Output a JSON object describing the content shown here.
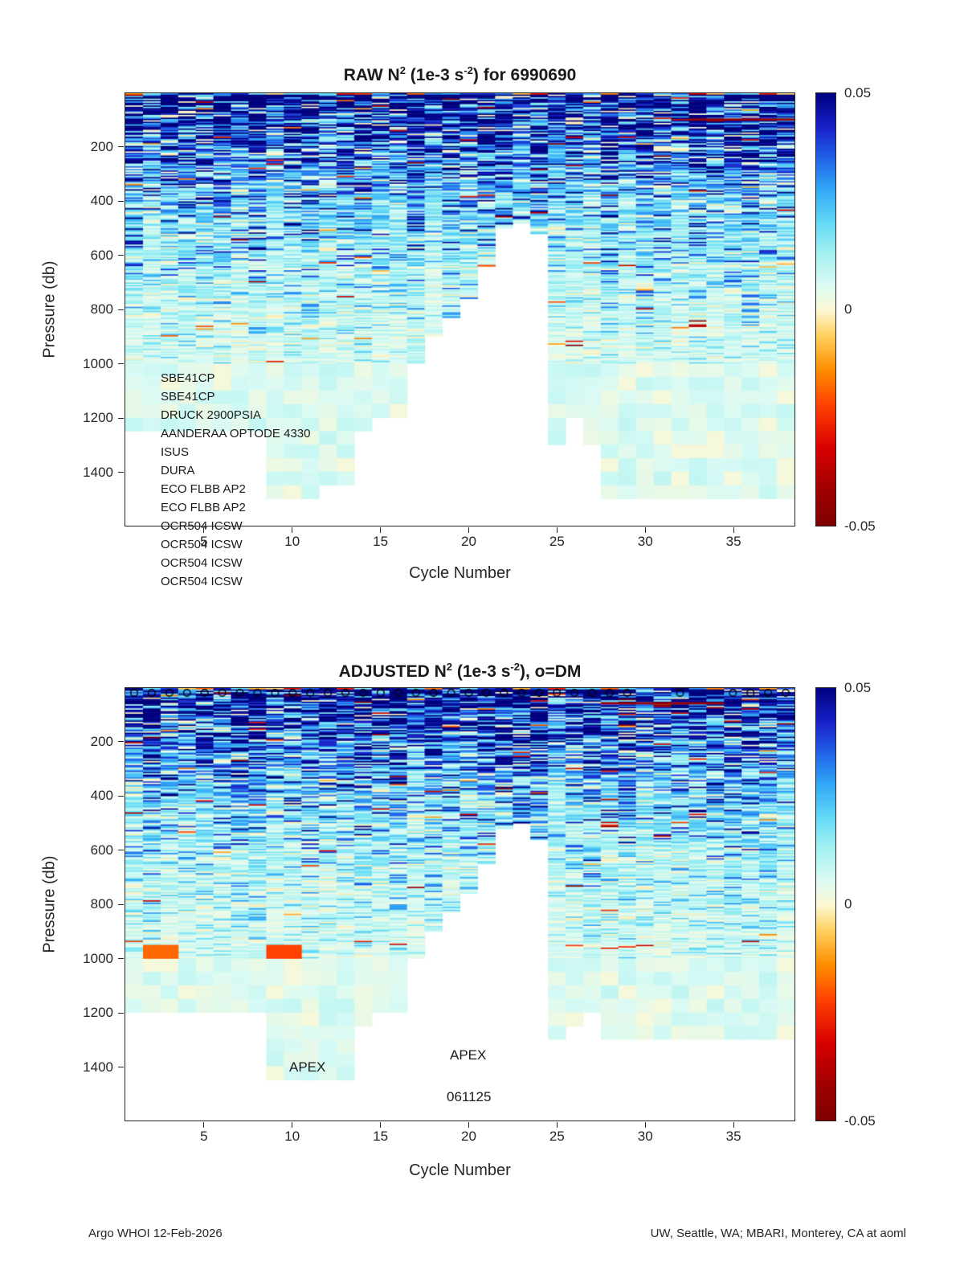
{
  "footer": {
    "left": "Argo WHOI 12-Feb-2026",
    "right": "UW, Seattle, WA; MBARI, Monterey, CA at aoml"
  },
  "colors": {
    "background": "#ffffff",
    "axis": "#262626",
    "colormap_stops": [
      {
        "t": 0.0,
        "c": "#7f0000"
      },
      {
        "t": 0.08,
        "c": "#9e0000"
      },
      {
        "t": 0.18,
        "c": "#d90000"
      },
      {
        "t": 0.28,
        "c": "#ff4200"
      },
      {
        "t": 0.36,
        "c": "#ff8e00"
      },
      {
        "t": 0.44,
        "c": "#ffd060"
      },
      {
        "t": 0.5,
        "c": "#fbf8d5"
      },
      {
        "t": 0.56,
        "c": "#d9faf4"
      },
      {
        "t": 0.63,
        "c": "#a2f1f1"
      },
      {
        "t": 0.7,
        "c": "#63daf6"
      },
      {
        "t": 0.78,
        "c": "#30a5f5"
      },
      {
        "t": 0.85,
        "c": "#2162e8"
      },
      {
        "t": 0.92,
        "c": "#1821c9"
      },
      {
        "t": 1.0,
        "c": "#00007f"
      }
    ]
  },
  "chart_data": [
    {
      "type": "heatmap",
      "title": "RAW N^2 (1e-3 s^-2) for 6990690",
      "title_segments": {
        "pre": "RAW N",
        "sup1": "2",
        "mid": " (1e-3 s",
        "sup2": "-2",
        "post": ") for 6990690"
      },
      "xlabel": "Cycle Number",
      "ylabel": "Pressure (db)",
      "xlim": [
        0.5,
        38.5
      ],
      "ylim": [
        0,
        1600
      ],
      "y_axis_reversed": true,
      "x_ticks": [
        5,
        10,
        15,
        20,
        25,
        30,
        35
      ],
      "y_ticks": [
        200,
        400,
        600,
        800,
        1000,
        1200,
        1400
      ],
      "colorbar": {
        "min": -0.05,
        "max": 0.05,
        "tick_labels": [
          "0.05",
          "0",
          "-0.05"
        ]
      },
      "annotations": [
        "SBE41CP",
        "SBE41CP",
        "DRUCK 2900PSIA",
        "AANDERAA OPTODE 4330",
        "ISUS",
        "DURA",
        "ECO FLBB AP2",
        "ECO FLBB AP2",
        "OCR504 ICSW",
        "OCR504 ICSW",
        "OCR504 ICSW",
        "OCR504 ICSW"
      ],
      "max_pressure_per_cycle": [
        1250,
        1250,
        1250,
        1250,
        1250,
        1250,
        1250,
        1250,
        1500,
        1500,
        1500,
        1450,
        1450,
        1250,
        1200,
        1200,
        1000,
        900,
        830,
        760,
        640,
        500,
        480,
        520,
        1300,
        1200,
        1300,
        1500,
        1500,
        1500,
        1500,
        1500,
        1500,
        1500,
        1500,
        1500,
        1500,
        1500
      ]
    },
    {
      "type": "heatmap",
      "title": "ADJUSTED N^2 (1e-3 s^-2), o=DM",
      "title_segments": {
        "pre": "ADJUSTED N",
        "sup1": "2",
        "mid": " (1e-3 s",
        "sup2": "-2",
        "post": "), o=DM"
      },
      "xlabel": "Cycle Number",
      "ylabel": "Pressure (db)",
      "xlim": [
        0.5,
        38.5
      ],
      "ylim": [
        0,
        1600
      ],
      "y_axis_reversed": true,
      "x_ticks": [
        5,
        10,
        15,
        20,
        25,
        30,
        35
      ],
      "y_ticks": [
        200,
        400,
        600,
        800,
        1000,
        1200,
        1400
      ],
      "colorbar": {
        "min": -0.05,
        "max": 0.05,
        "tick_labels": [
          "0.05",
          "0",
          "-0.05"
        ]
      },
      "annotations": [
        "APEX",
        "APEX",
        "061125"
      ],
      "dm_marker_cycles": [
        1,
        2,
        3,
        4,
        5,
        6,
        7,
        8,
        9,
        10,
        11,
        12,
        13,
        14,
        15,
        16,
        17,
        18,
        19,
        20,
        21,
        22,
        23,
        24,
        25,
        26,
        27,
        28,
        29,
        32,
        35,
        36,
        37,
        38
      ],
      "max_pressure_per_cycle": [
        1200,
        1200,
        1200,
        1200,
        1200,
        1200,
        1200,
        1200,
        1450,
        1450,
        1450,
        1450,
        1450,
        1250,
        1200,
        1200,
        1000,
        900,
        830,
        760,
        650,
        520,
        500,
        560,
        1300,
        1250,
        1200,
        1300,
        1300,
        1300,
        1300,
        1300,
        1300,
        1300,
        1300,
        1300,
        1300,
        1300
      ]
    }
  ],
  "render": {
    "seeds": [
      426990690,
      136990690
    ],
    "streaks": [
      [
        {
          "p": 93,
          "h": 8,
          "from": 33,
          "to": 38,
          "v": -0.042
        }
      ],
      [
        {
          "p": 52,
          "h": 8,
          "from": 28,
          "to": 34,
          "v": -0.042
        }
      ]
    ],
    "anomaly_cells": [
      [],
      [
        {
          "cycles": [
            2,
            3
          ],
          "p0": 950,
          "p1": 1000,
          "v": -0.018
        },
        {
          "cycles": [
            9,
            10
          ],
          "p0": 950,
          "p1": 1000,
          "v": -0.022
        }
      ]
    ]
  }
}
